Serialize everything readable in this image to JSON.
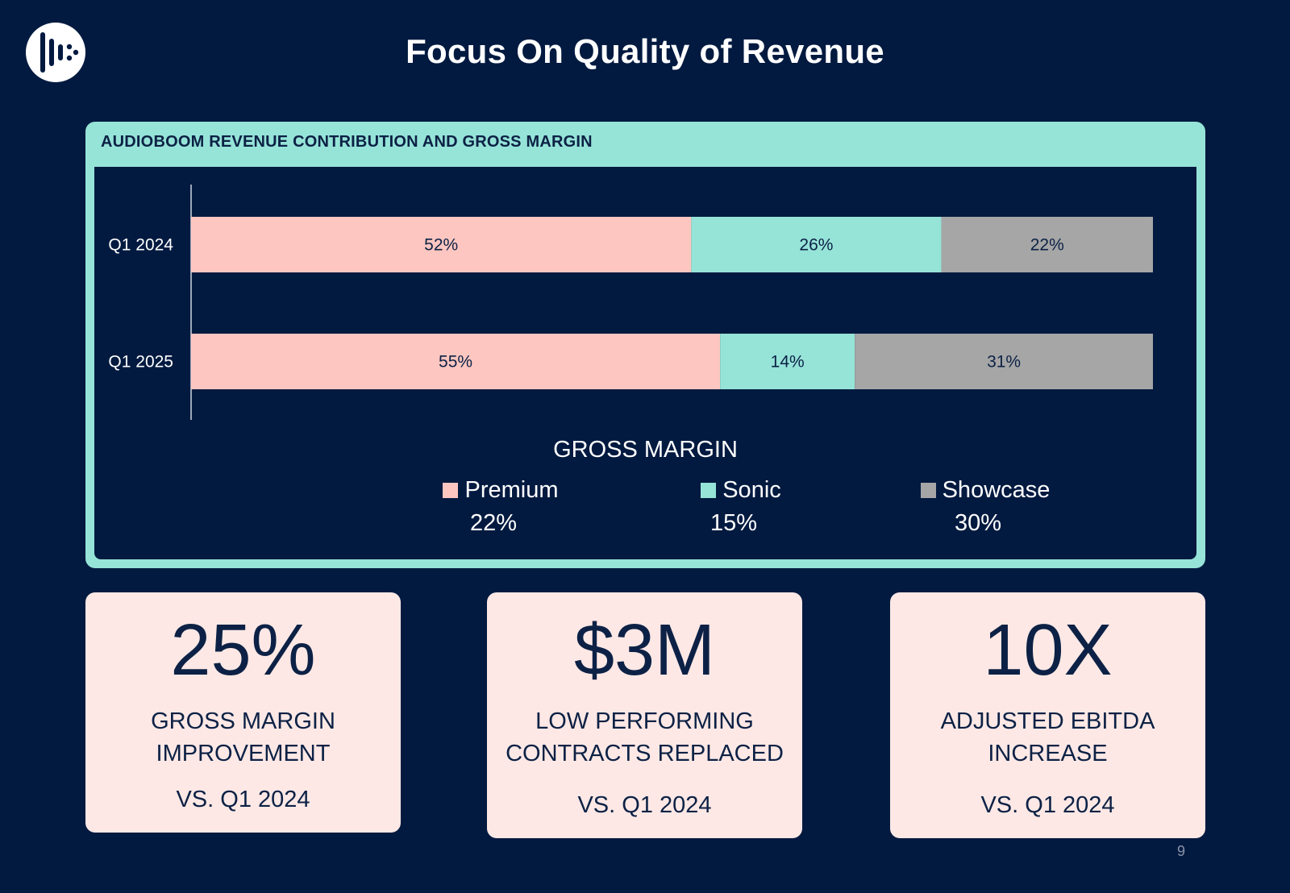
{
  "slide": {
    "title": "Focus On Quality of Revenue",
    "page_number": "9"
  },
  "chart_panel": {
    "header": "AUDIOBOOM REVENUE CONTRIBUTION AND GROSS MARGIN"
  },
  "chart_data": {
    "type": "bar",
    "orientation": "horizontal",
    "stacked": true,
    "normalized_percent": true,
    "title": "AUDIOBOOM REVENUE CONTRIBUTION AND GROSS MARGIN",
    "categories": [
      "Q1 2024",
      "Q1 2025"
    ],
    "series": [
      {
        "name": "Premium",
        "values": [
          52,
          55
        ],
        "labels": [
          "52%",
          "55%"
        ],
        "color": "#fdc6c0"
      },
      {
        "name": "Sonic",
        "values": [
          26,
          14
        ],
        "labels": [
          "26%",
          "14%"
        ],
        "color": "#96e4d8"
      },
      {
        "name": "Showcase",
        "values": [
          22,
          31
        ],
        "labels": [
          "22%",
          "31%"
        ],
        "color": "#a6a6a6"
      }
    ],
    "xlim": [
      0,
      100
    ],
    "xlabel": "",
    "ylabel": "",
    "legend_position": "bottom"
  },
  "gross_margin": {
    "title": "GROSS MARGIN",
    "items": [
      {
        "name": "Premium",
        "value": "22%",
        "color": "#fdc6c0"
      },
      {
        "name": "Sonic",
        "value": "15%",
        "color": "#96e4d8"
      },
      {
        "name": "Showcase",
        "value": "30%",
        "color": "#a6a6a6"
      }
    ]
  },
  "kpis": [
    {
      "value": "25%",
      "label_line1": "GROSS MARGIN",
      "label_line2": "IMPROVEMENT",
      "compare": "VS. Q1 2024"
    },
    {
      "value": "$3M",
      "label_line1": "LOW PERFORMING",
      "label_line2": "CONTRACTS REPLACED",
      "compare": "VS. Q1 2024"
    },
    {
      "value": "10X",
      "label_line1": "ADJUSTED EBITDA",
      "label_line2": "INCREASE",
      "compare": "VS. Q1 2024"
    }
  ],
  "colors": {
    "background": "#021a40",
    "accent_teal": "#96e4d8",
    "kpi_card": "#fde8e5",
    "navy_text": "#0c2145"
  },
  "icons": {
    "logo": "audioboom-logo-icon"
  }
}
